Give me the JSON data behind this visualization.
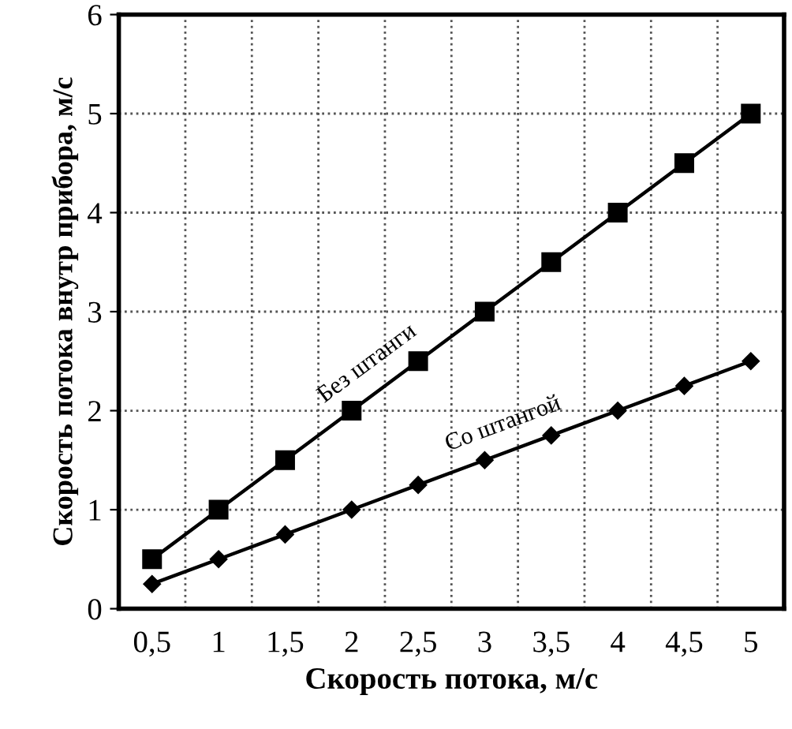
{
  "chart_data": {
    "type": "line",
    "xlabel": "Скорость потока, м/с",
    "ylabel": "Скорость потока внутр прибора, м/с",
    "categories": [
      "0,5",
      "1",
      "1,5",
      "2",
      "2,5",
      "3",
      "3,5",
      "4",
      "4,5",
      "5"
    ],
    "series": [
      {
        "name": "Без штанги",
        "color": "#000000",
        "marker": "square",
        "values": [
          0.5,
          1,
          1.5,
          2,
          2.5,
          3,
          3.5,
          4,
          4.5,
          5
        ]
      },
      {
        "name": "Со штангой",
        "color": "#000000",
        "marker": "diamond",
        "values": [
          0.25,
          0.5,
          0.75,
          1,
          1.25,
          1.5,
          1.75,
          2,
          2.25,
          2.5
        ]
      }
    ],
    "ylim": [
      0,
      6
    ],
    "yticks": [
      0,
      1,
      2,
      3,
      4,
      5,
      6
    ],
    "grid": true,
    "legend": false,
    "line_style": "solid"
  }
}
